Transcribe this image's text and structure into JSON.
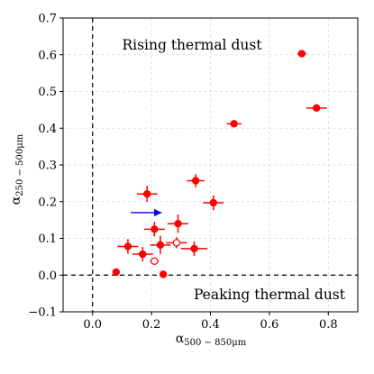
{
  "chart_data": {
    "type": "scatter",
    "xlabel": "α500 − 850μm",
    "ylabel": "α250 − 500μm",
    "xlim": [
      -0.1,
      0.9
    ],
    "ylim": [
      -0.1,
      0.7
    ],
    "x_ticks": [
      "0.0",
      "0.2",
      "0.4",
      "0.6",
      "0.8"
    ],
    "y_ticks": [
      "−0.1",
      "0.0",
      "0.1",
      "0.2",
      "0.3",
      "0.4",
      "0.5",
      "0.6",
      "0.7"
    ],
    "grid": true,
    "reference_lines": {
      "vertical_x": 0.0,
      "horizontal_y": 0.0,
      "style": "dashed"
    },
    "annotations": [
      {
        "text": "Rising thermal dust",
        "position": "top-center"
      },
      {
        "text": "Peaking thermal dust",
        "position": "bottom-right"
      }
    ],
    "arrow": {
      "from": [
        0.13,
        0.17
      ],
      "to": [
        0.25,
        0.17
      ],
      "color": "#0000ff"
    },
    "series": [
      {
        "marker": "filled-circle",
        "color": "#ff0000",
        "points": [
          {
            "x": 0.71,
            "y": 0.603,
            "xerr": 0.015,
            "yerr": 0.006
          },
          {
            "x": 0.76,
            "y": 0.455,
            "xerr": 0.035,
            "yerr": 0.006
          },
          {
            "x": 0.48,
            "y": 0.412,
            "xerr": 0.025,
            "yerr": 0.007
          },
          {
            "x": 0.35,
            "y": 0.257,
            "xerr": 0.03,
            "yerr": 0.018
          },
          {
            "x": 0.185,
            "y": 0.221,
            "xerr": 0.035,
            "yerr": 0.022
          },
          {
            "x": 0.41,
            "y": 0.197,
            "xerr": 0.035,
            "yerr": 0.02
          },
          {
            "x": 0.29,
            "y": 0.14,
            "xerr": 0.035,
            "yerr": 0.025
          },
          {
            "x": 0.21,
            "y": 0.125,
            "xerr": 0.035,
            "yerr": 0.02
          },
          {
            "x": 0.23,
            "y": 0.082,
            "xerr": 0.035,
            "yerr": 0.025
          },
          {
            "x": 0.12,
            "y": 0.078,
            "xerr": 0.035,
            "yerr": 0.02
          },
          {
            "x": 0.345,
            "y": 0.072,
            "xerr": 0.045,
            "yerr": 0.02
          },
          {
            "x": 0.17,
            "y": 0.057,
            "xerr": 0.035,
            "yerr": 0.02
          },
          {
            "x": 0.08,
            "y": 0.008,
            "xerr": 0.01,
            "yerr": 0.007
          },
          {
            "x": 0.24,
            "y": 0.002,
            "xerr": 0.01,
            "yerr": 0.0
          }
        ]
      },
      {
        "marker": "open-circle",
        "color": "#ff0000",
        "points": [
          {
            "x": 0.285,
            "y": 0.088,
            "xerr": 0.035,
            "yerr": 0.015
          },
          {
            "x": 0.21,
            "y": 0.038,
            "xerr": 0.015,
            "yerr": 0.004
          }
        ]
      }
    ]
  }
}
